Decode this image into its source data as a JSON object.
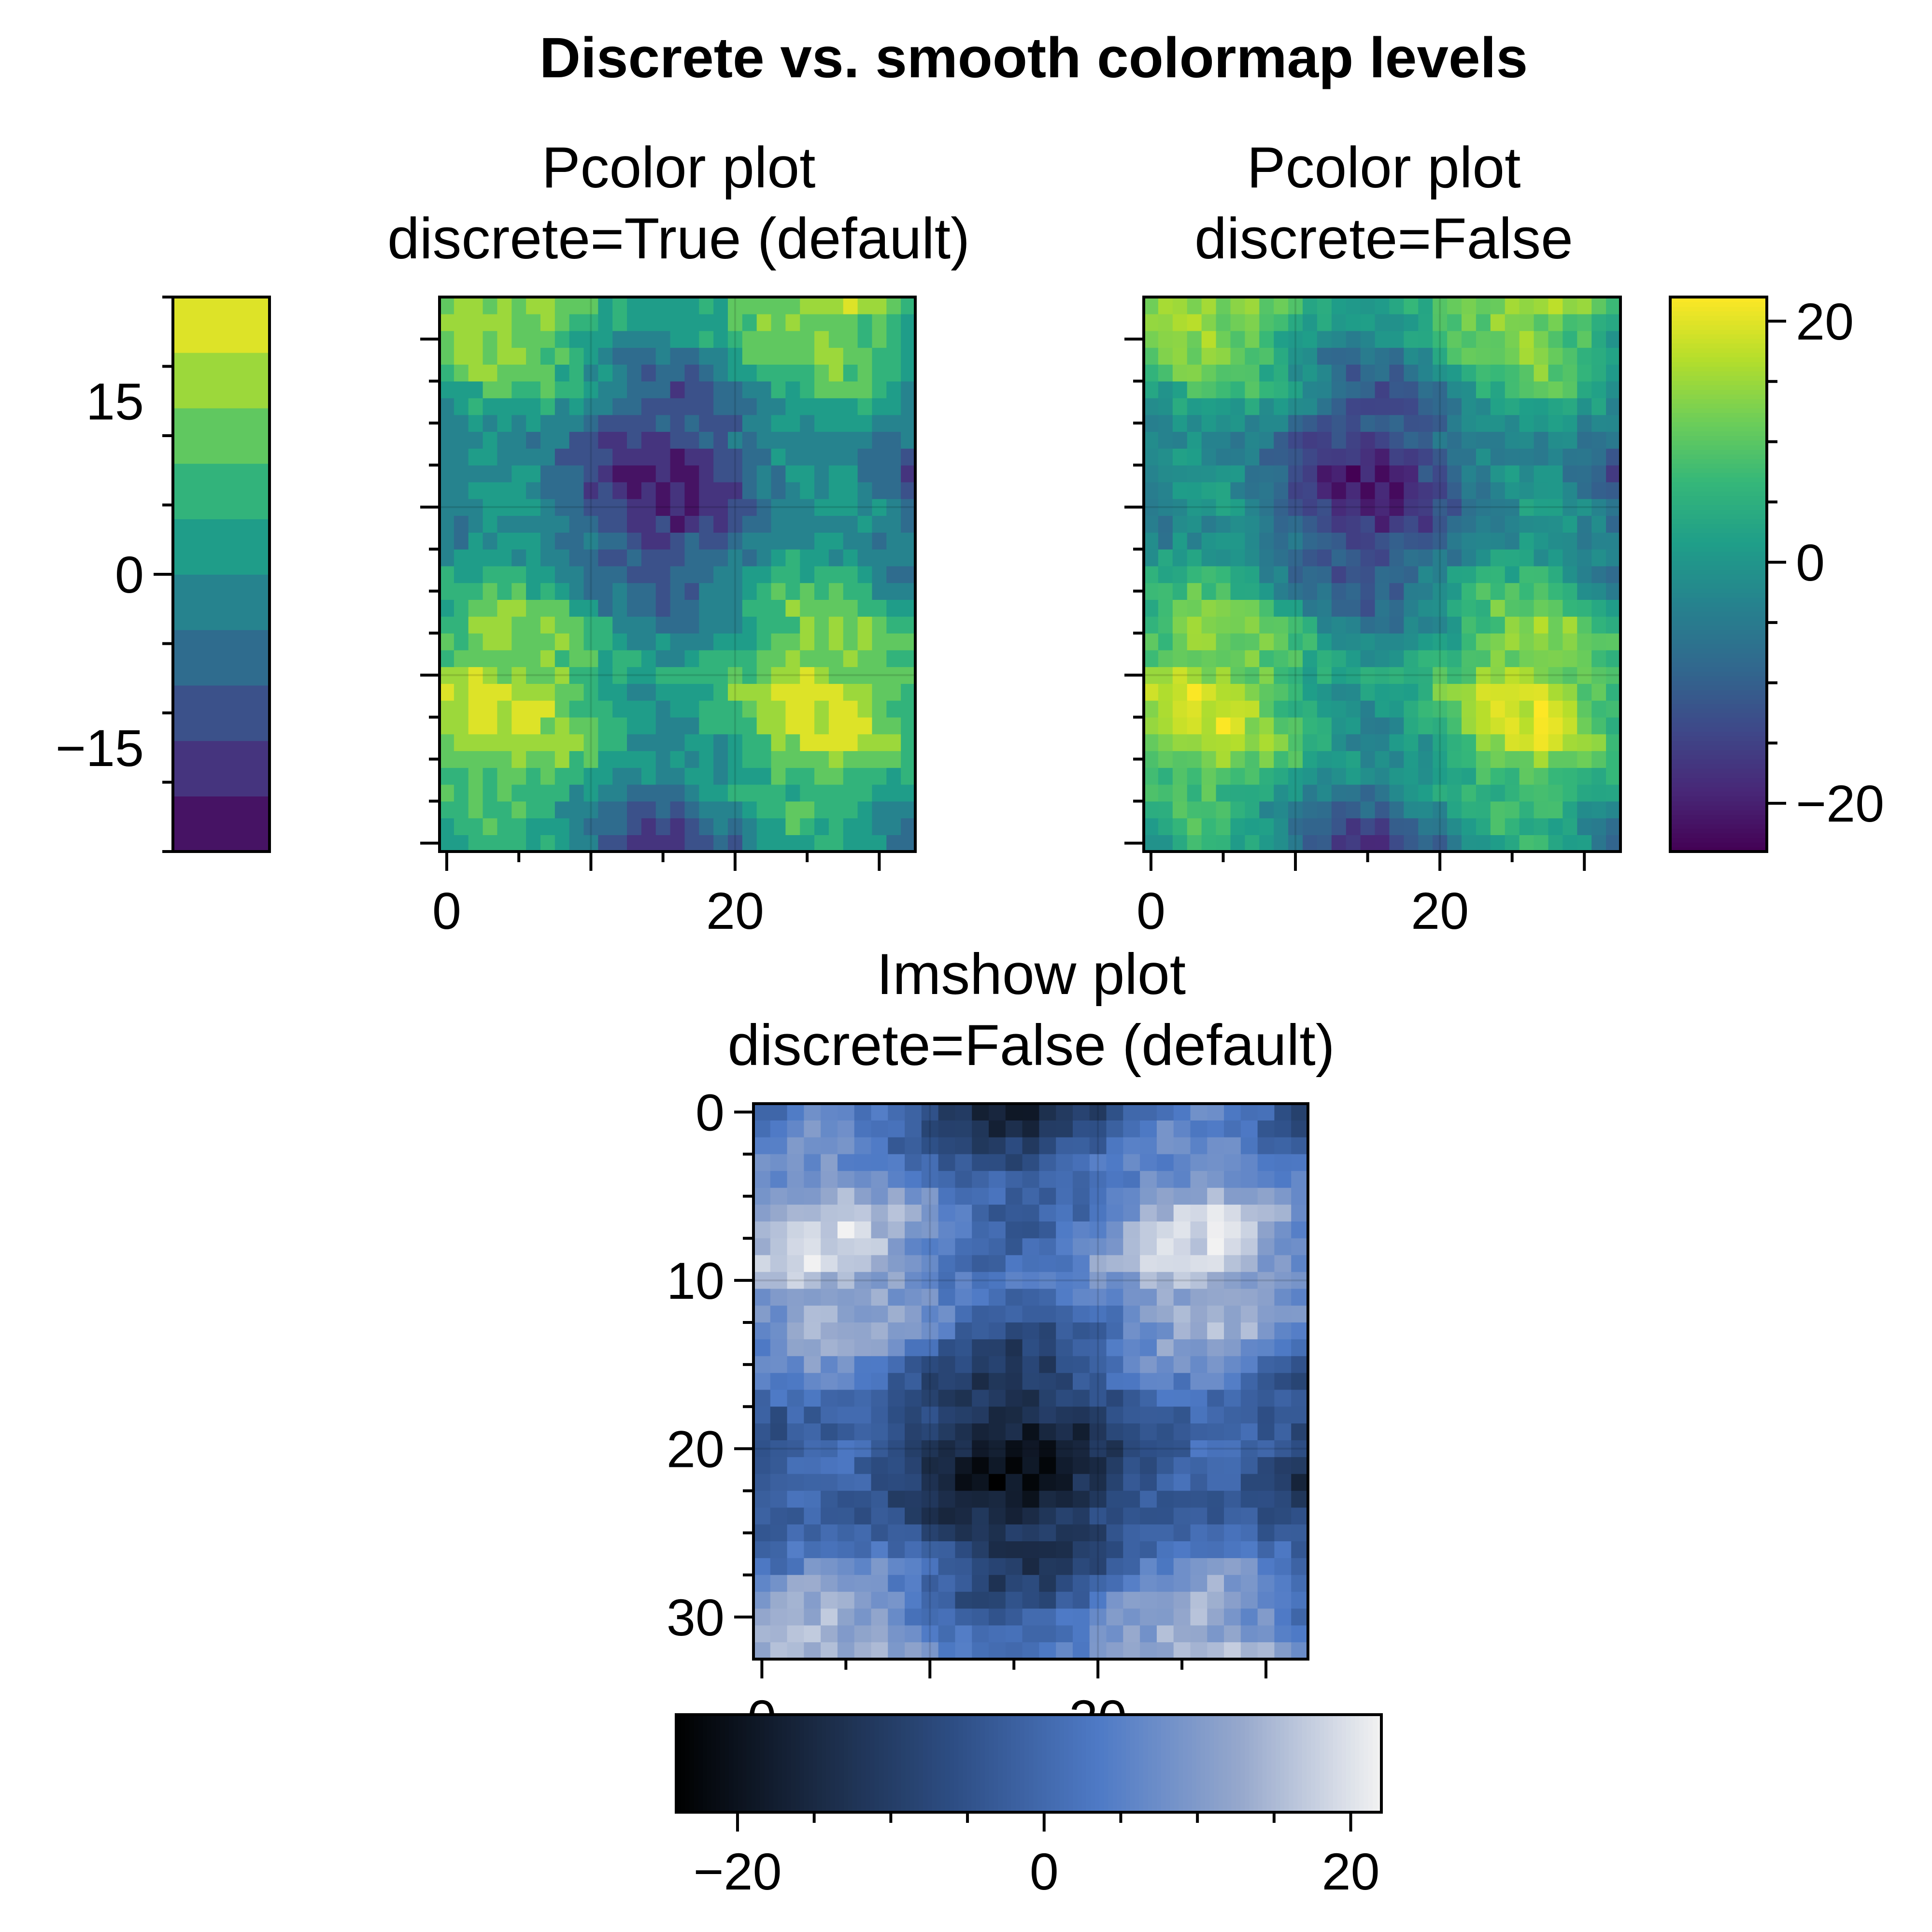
{
  "figure": {
    "title": "Discrete vs. smooth colormap levels"
  },
  "colors": {
    "viridis": [
      "#440154",
      "#482878",
      "#3e4989",
      "#31688e",
      "#26828e",
      "#1f9e89",
      "#35b779",
      "#6ece58",
      "#b5de2b",
      "#fde725"
    ],
    "blues_ramp": [
      "#000000",
      "#1a2a44",
      "#2e4f86",
      "#4e7ac6",
      "#96a8cc",
      "#f2f2f2"
    ]
  },
  "chart_data": [
    {
      "type": "heatmap",
      "plot": "pcolor",
      "title": "Pcolor plot",
      "subtitle": "discrete=True (default)",
      "cmap": "viridis",
      "discrete": true,
      "levels": 10,
      "grid_size": [
        33,
        33
      ],
      "xlim": [
        -0.5,
        32.5
      ],
      "ylim": [
        -0.5,
        32.5
      ],
      "xticks": [
        0,
        20
      ],
      "colorbar": {
        "location": "left",
        "range": [
          -24,
          24
        ],
        "ticks": [
          -15,
          0,
          15
        ],
        "tick_labels": [
          "−15",
          "0",
          "15"
        ]
      },
      "grid": true
    },
    {
      "type": "heatmap",
      "plot": "pcolor",
      "title": "Pcolor plot",
      "subtitle": "discrete=False",
      "cmap": "viridis",
      "discrete": false,
      "grid_size": [
        33,
        33
      ],
      "xlim": [
        -0.5,
        32.5
      ],
      "ylim": [
        -0.5,
        32.5
      ],
      "xticks": [
        0,
        20
      ],
      "colorbar": {
        "location": "right",
        "range": [
          -24,
          22
        ],
        "ticks": [
          -20,
          0,
          20
        ],
        "tick_labels": [
          "−20",
          "0",
          "20"
        ]
      },
      "grid": true
    },
    {
      "type": "heatmap",
      "plot": "imshow",
      "title": "Imshow plot",
      "subtitle": "discrete=False (default)",
      "cmap": "blues",
      "discrete": false,
      "grid_size": [
        33,
        33
      ],
      "xlim": [
        -0.5,
        32.5
      ],
      "ylim": [
        32.5,
        -0.5
      ],
      "xticks": [
        0,
        20
      ],
      "yticks": [
        0,
        10,
        20,
        30
      ],
      "colorbar": {
        "location": "bottom",
        "range": [
          -24,
          22
        ],
        "ticks": [
          -20,
          0,
          20
        ],
        "tick_labels": [
          "−20",
          "0",
          "20"
        ]
      },
      "grid": true
    }
  ]
}
